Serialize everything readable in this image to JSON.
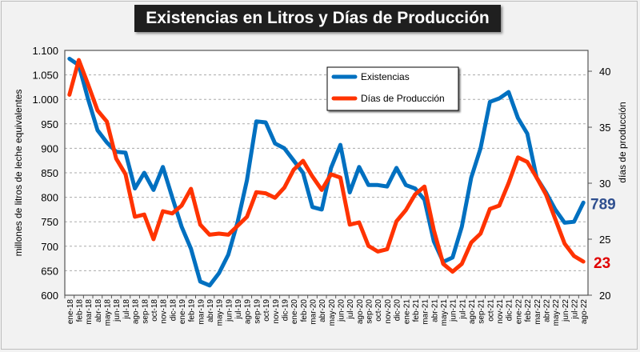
{
  "chart_data": {
    "type": "line",
    "title": "Existencias en Litros y Días de Producción",
    "ylabel": "millones de litros de leche equivalentes",
    "y2label": "días de producción",
    "ylim": [
      600,
      1100
    ],
    "y2lim": [
      20,
      41.86
    ],
    "yticks": [
      "600",
      "650",
      "700",
      "750",
      "800",
      "850",
      "900",
      "950",
      "1.000",
      "1.050",
      "1.100"
    ],
    "y2ticks": [
      "20",
      "25",
      "30",
      "35",
      "40"
    ],
    "grid": true,
    "legend_position": "top-center",
    "categories": [
      "ene-18",
      "feb-18",
      "mar-18",
      "abr-18",
      "may-18",
      "jun-18",
      "jul-18",
      "ago-18",
      "sep-18",
      "oct-18",
      "nov-18",
      "dic-18",
      "ene-19",
      "feb-19",
      "mar-19",
      "abr-19",
      "may-19",
      "jun-19",
      "jul-19",
      "ago-19",
      "sep-19",
      "oct-19",
      "nov-19",
      "dic-19",
      "ene-20",
      "feb-20",
      "mar-20",
      "abr-20",
      "may-20",
      "jun-20",
      "jul-20",
      "ago-20",
      "sep-20",
      "oct-20",
      "nov-20",
      "dic-20",
      "ene-21",
      "feb-21",
      "mar-21",
      "abr-21",
      "may-21",
      "jun-21",
      "jul-21",
      "ago-21",
      "sep-21",
      "oct-21",
      "nov-21",
      "dic-21",
      "ene-22",
      "feb-22",
      "mar-22",
      "abr-22",
      "may-22",
      "jun-22",
      "jul-22",
      "ago-22"
    ],
    "series": [
      {
        "name": "Existencias",
        "axis": "left",
        "color": "#0070c0",
        "values": [
          1083,
          1070,
          1000,
          937,
          912,
          893,
          891,
          818,
          850,
          815,
          862,
          800,
          740,
          695,
          628,
          620,
          645,
          683,
          750,
          835,
          955,
          953,
          910,
          900,
          875,
          850,
          780,
          775,
          860,
          907,
          810,
          862,
          825,
          825,
          822,
          860,
          825,
          818,
          795,
          710,
          668,
          677,
          740,
          840,
          900,
          995,
          1002,
          1015,
          962,
          930,
          840,
          810,
          775,
          748,
          750,
          789
        ]
      },
      {
        "name": "Días de Producción",
        "axis": "right",
        "color": "#ff3300",
        "values": [
          37.9,
          41.0,
          38.8,
          36.5,
          35.5,
          32.2,
          30.8,
          27.0,
          27.2,
          25.0,
          27.5,
          27.3,
          28.0,
          29.5,
          26.3,
          25.4,
          25.5,
          25.4,
          26.2,
          27.0,
          29.2,
          29.1,
          28.7,
          29.6,
          31.2,
          32.0,
          30.6,
          29.4,
          30.8,
          30.5,
          26.3,
          26.5,
          24.4,
          23.9,
          24.1,
          26.6,
          27.6,
          29.0,
          29.7,
          25.8,
          22.8,
          22.1,
          22.8,
          24.7,
          25.5,
          27.7,
          28.0,
          30.0,
          32.3,
          31.9,
          30.5,
          29.0,
          26.8,
          24.6,
          23.5,
          23.0
        ]
      }
    ],
    "annotations": [
      {
        "text": "789",
        "series": "Existencias",
        "color": "#2f4f8f"
      },
      {
        "text": "23",
        "series": "Días de Producción",
        "color": "#e00000"
      }
    ]
  }
}
